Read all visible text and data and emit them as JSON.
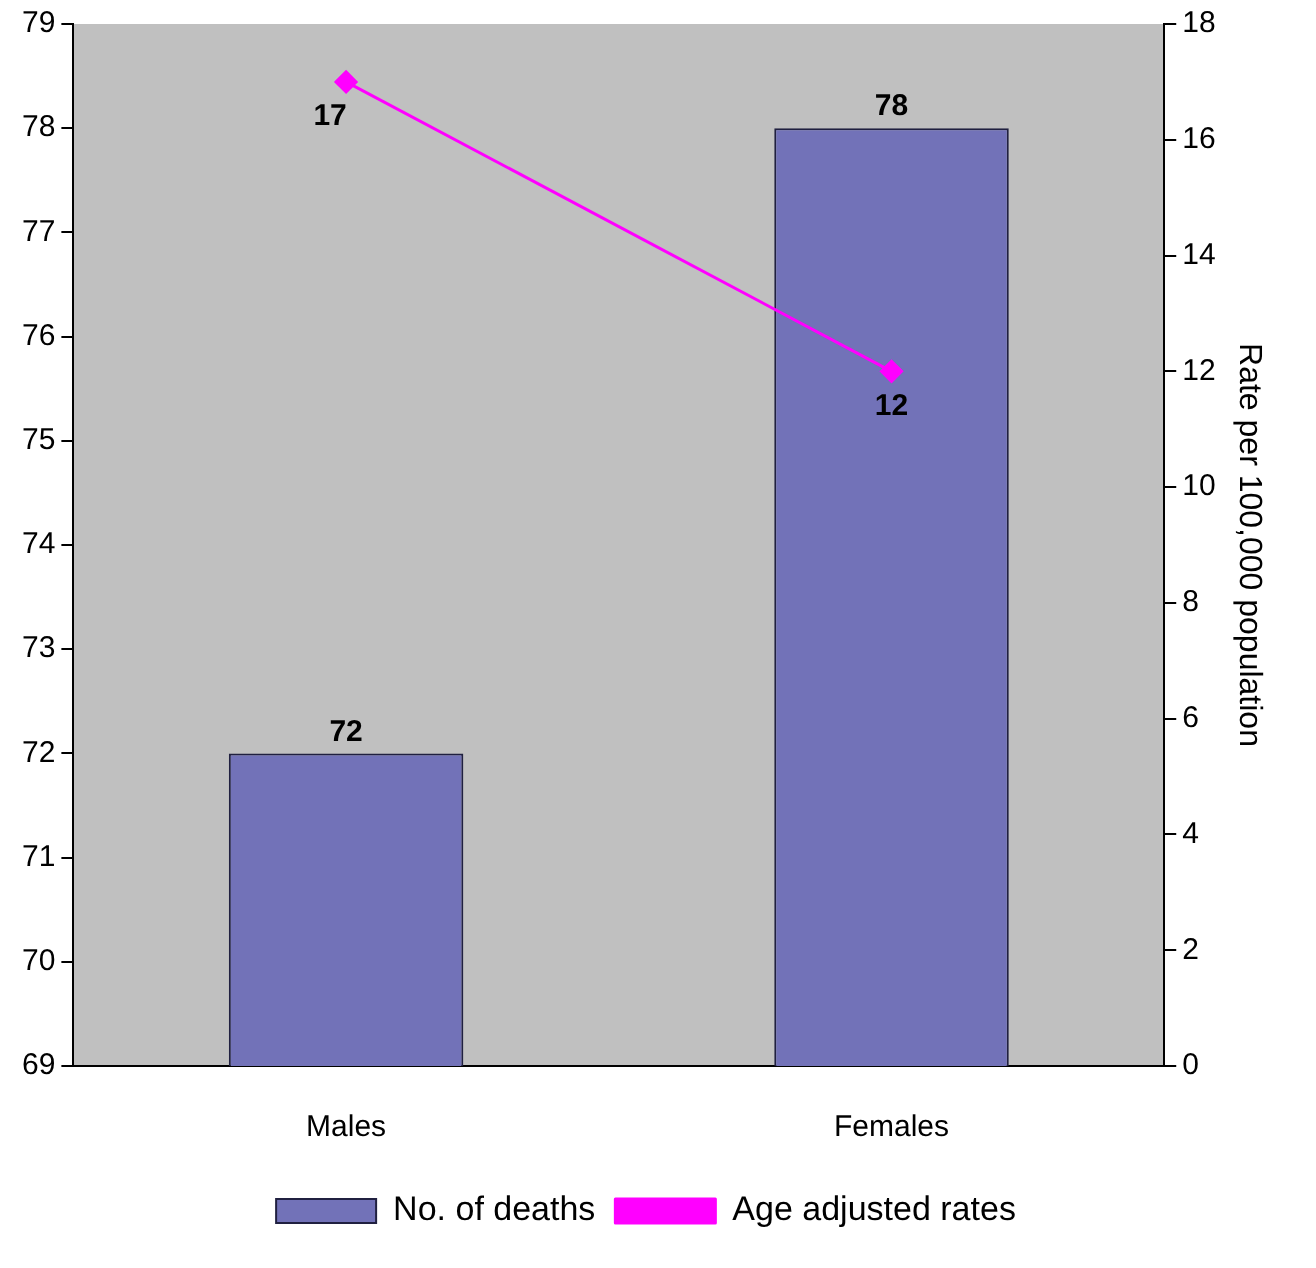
{
  "chart_data": {
    "type": "bar",
    "categories": [
      "Males",
      "Females"
    ],
    "y2label": "Rate per 100,000 population",
    "series": [
      {
        "name": "No. of deaths",
        "color": "#7272b8",
        "values": [
          72,
          78
        ]
      },
      {
        "name": "Age adjusted rates",
        "type": "line",
        "axis": "y2",
        "color": "#ff00ff",
        "values": [
          17,
          12
        ],
        "marker": "diamond"
      }
    ],
    "ylim": [
      69,
      79
    ],
    "yticks": [
      69,
      70,
      71,
      72,
      73,
      74,
      75,
      76,
      77,
      78,
      79
    ],
    "y2lim": [
      0,
      18
    ],
    "y2ticks": [
      0,
      2,
      4,
      6,
      8,
      10,
      12,
      14,
      16,
      18
    ],
    "data_labels": true,
    "grid": false,
    "legend": "bottom"
  }
}
